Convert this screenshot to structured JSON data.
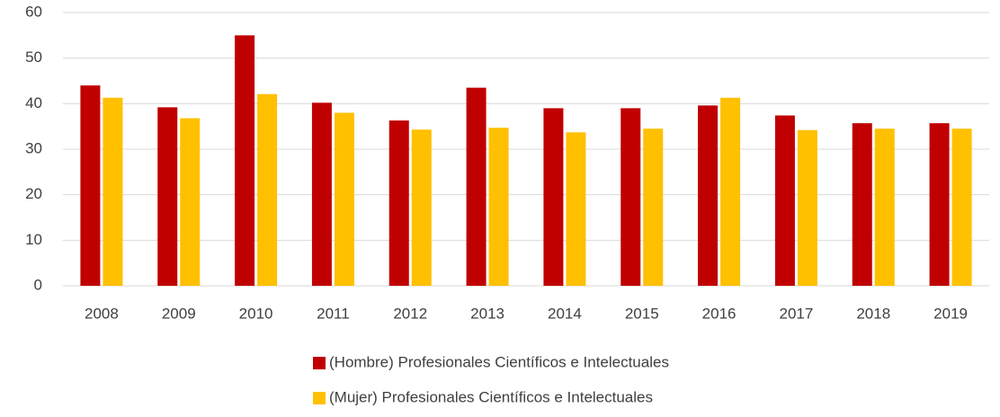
{
  "chart_data": {
    "type": "bar",
    "categories": [
      "2008",
      "2009",
      "2010",
      "2011",
      "2012",
      "2013",
      "2014",
      "2015",
      "2016",
      "2017",
      "2018",
      "2019"
    ],
    "series": [
      {
        "name": "(Hombre) Profesionales Científicos e Intelectuales",
        "color": "#c00000",
        "values": [
          44,
          39.2,
          55,
          40.2,
          36.3,
          43.5,
          39,
          39,
          39.6,
          37.4,
          35.7,
          35.7
        ]
      },
      {
        "name": "(Mujer) Profesionales Científicos e Intelectuales",
        "color": "#ffc000",
        "values": [
          41.3,
          36.8,
          42.1,
          38,
          34.3,
          34.7,
          33.7,
          34.5,
          41.3,
          34.2,
          34.5,
          34.5
        ]
      }
    ],
    "ylim": [
      0,
      60
    ],
    "yticks": [
      0,
      10,
      20,
      30,
      40,
      50,
      60
    ],
    "grid": true,
    "legend": "bottom"
  }
}
